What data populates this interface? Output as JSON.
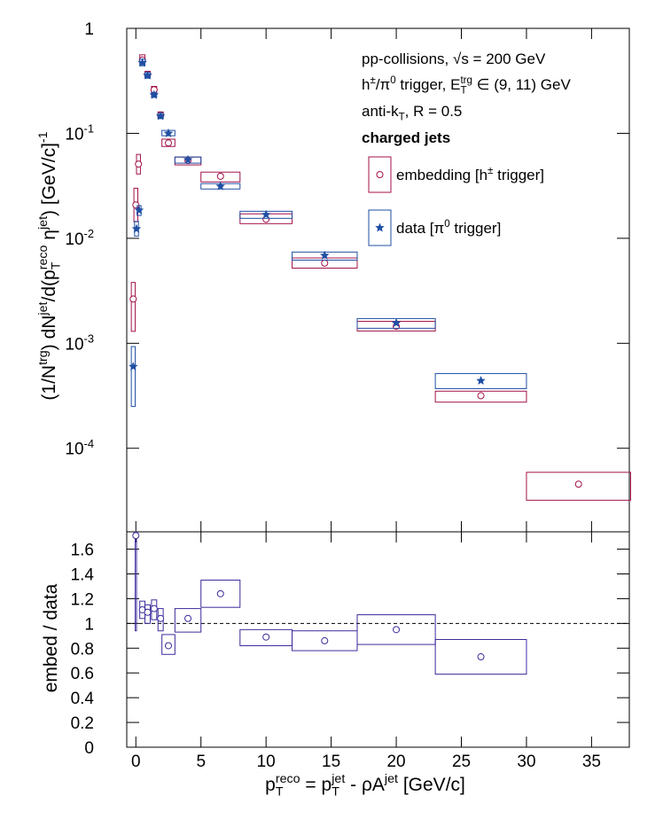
{
  "chart_data": [
    {
      "type": "scatter",
      "ylog": true,
      "ylabel": "(1/N^{trg}) dN^{jet}/d(p_{T}^{reco} η^{jet}) [GeV/c]^{-1}",
      "annotations": [
        "pp-collisions, √s = 200 GeV",
        "h^{±}/π^{0} trigger, E_{T}^{trg} ∈ (9, 11) GeV",
        "anti-k_{T}, R = 0.5",
        "charged jets"
      ],
      "xlim": [
        -0.7,
        37.9
      ],
      "xticks": [
        0,
        5,
        10,
        15,
        20,
        25,
        30,
        35
      ],
      "ylim": [
        1.6e-05,
        1
      ],
      "yticks": [
        {
          "value": 0.0001,
          "label": "10^{-4}"
        },
        {
          "value": 0.001,
          "label": "10^{-3}"
        },
        {
          "value": 0.01,
          "label": "10^{-2}"
        },
        {
          "value": 0.1,
          "label": "10^{-1}"
        },
        1
      ],
      "series": [
        {
          "name": "embedding [h^{±} trigger]",
          "color": "#a3124a",
          "marker": "circle",
          "x": [
            -0.2,
            0,
            0.2,
            0.5,
            0.9,
            1.4,
            1.9,
            2.5,
            4,
            6.5,
            10,
            14.5,
            20,
            26.5,
            34
          ],
          "values": [
            0.00264,
            0.0208,
            0.051,
            0.5,
            0.365,
            0.26,
            0.149,
            0.081,
            0.055,
            0.039,
            0.0152,
            0.0058,
            0.00145,
            0.000317,
            4.55e-05
          ],
          "x_low": [
            -0.35,
            -0.15,
            0.05,
            0.3,
            0.7,
            1.2,
            1.7,
            2,
            3,
            5,
            8,
            12,
            17,
            23,
            30
          ],
          "x_high": [
            -0.05,
            0.15,
            0.35,
            0.7,
            1.1,
            1.6,
            2.1,
            3,
            5,
            8,
            12,
            17,
            23,
            30,
            38
          ],
          "box_low": [
            0.0013,
            0.0144,
            0.041,
            0.48,
            0.34,
            0.24,
            0.14,
            0.075,
            0.05,
            0.0345,
            0.0138,
            0.0052,
            0.00131,
            0.000275,
            3.2e-05
          ],
          "box_high": [
            0.0038,
            0.03,
            0.063,
            0.56,
            0.39,
            0.28,
            0.16,
            0.088,
            0.0594,
            0.0427,
            0.0171,
            0.0065,
            0.00162,
            0.00035,
            5.9e-05
          ]
        },
        {
          "name": "data [π^{0} trigger]",
          "color": "#1f4fa3",
          "marker": "star",
          "x": [
            -0.2,
            0.05,
            0.25,
            0.5,
            0.9,
            1.4,
            1.9,
            2.5,
            4,
            6.5,
            10,
            14.5,
            20,
            26.5
          ],
          "values": [
            0.0006,
            0.0123,
            0.0185,
            0.47,
            0.356,
            0.232,
            0.146,
            0.1,
            0.056,
            0.0313,
            0.0168,
            0.00686,
            0.00156,
            0.00044
          ],
          "x_low": [
            -0.35,
            -0.1,
            0.1,
            0.3,
            0.7,
            1.2,
            1.7,
            2,
            3,
            5,
            8,
            12,
            17,
            23
          ],
          "x_high": [
            -0.05,
            0.2,
            0.4,
            0.7,
            1.1,
            1.6,
            2.1,
            3,
            5,
            8,
            12,
            17,
            23,
            30
          ],
          "box_low": [
            0.00025,
            0.0105,
            0.0165,
            0.44,
            0.335,
            0.22,
            0.138,
            0.0949,
            0.052,
            0.0295,
            0.0155,
            0.0062,
            0.00139,
            0.00037
          ],
          "box_high": [
            0.00093,
            0.0145,
            0.0205,
            0.51,
            0.38,
            0.245,
            0.155,
            0.1067,
            0.0595,
            0.0332,
            0.0181,
            0.0074,
            0.00172,
            0.000515
          ]
        }
      ]
    },
    {
      "type": "scatter",
      "ylabel": "embed / data",
      "xlabel": "p_{T}^{reco} = p_{T}^{jet} - ρA^{jet} [GeV/c]",
      "xlim": [
        -0.7,
        37.9
      ],
      "xticks": [
        0,
        5,
        10,
        15,
        20,
        25,
        30,
        35
      ],
      "ylim": [
        0,
        1.74
      ],
      "yticks": [
        0,
        0.2,
        0.4,
        0.6,
        0.8,
        1,
        1.2,
        1.4,
        1.6
      ],
      "reference_line": 1,
      "series": [
        {
          "color": "#3a2c9c",
          "marker": "circle",
          "x": [
            0,
            0.5,
            0.9,
            1.4,
            1.9,
            2.5,
            4,
            6.5,
            10,
            14.5,
            20,
            26.5
          ],
          "values": [
            1.71,
            1.11,
            1.09,
            1.12,
            1.04,
            0.82,
            1.04,
            1.24,
            0.89,
            0.86,
            0.95,
            0.73
          ],
          "x_low": [
            -0.05,
            0.3,
            0.7,
            1.2,
            1.7,
            2,
            3,
            5,
            8,
            12,
            17,
            23
          ],
          "x_high": [
            0.05,
            0.7,
            1.1,
            1.6,
            2.1,
            3,
            5,
            8,
            12,
            17,
            23,
            30
          ],
          "box_low": [
            0.94,
            1.04,
            1.0,
            1.03,
            0.94,
            0.75,
            0.93,
            1.13,
            0.82,
            0.78,
            0.83,
            0.59
          ],
          "box_high": [
            1.74,
            1.18,
            1.15,
            1.19,
            1.12,
            0.91,
            1.12,
            1.35,
            0.95,
            0.94,
            1.07,
            0.87
          ]
        }
      ]
    }
  ]
}
